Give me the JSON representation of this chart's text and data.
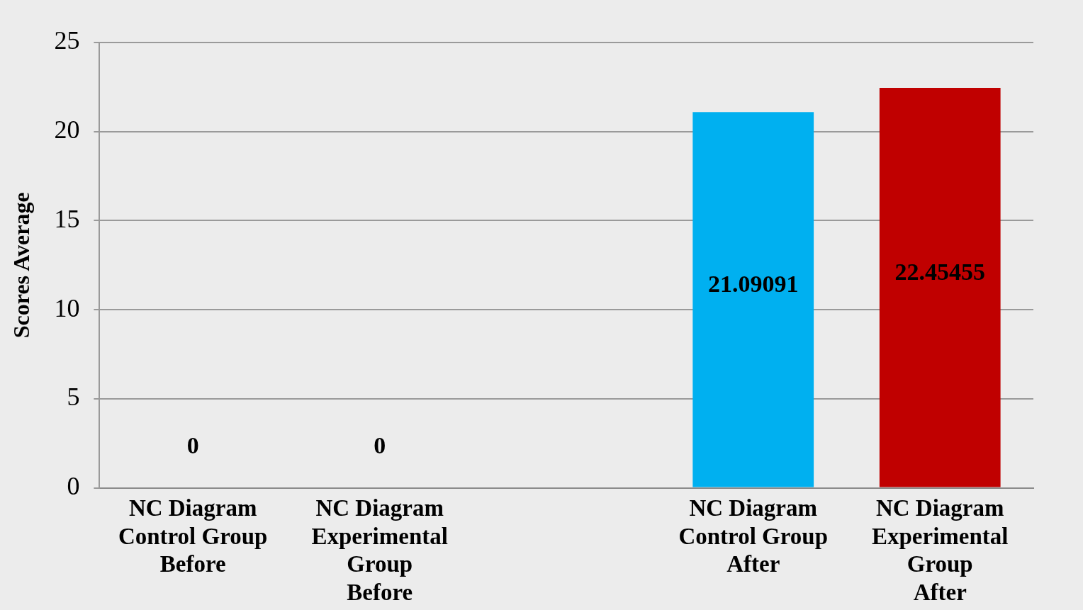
{
  "chart_data": {
    "type": "bar",
    "ylabel": "Scores Average",
    "categories": [
      "NC Diagram\nControl Group\nBefore",
      "NC Diagram\nExperimental\nGroup\nBefore",
      null,
      "NC Diagram\nControl Group\nAfter",
      "NC Diagram\nExperimental\nGroup\nAfter"
    ],
    "values": [
      0,
      0,
      null,
      21.09091,
      22.45455
    ],
    "colors": [
      "#00b0f0",
      "#c00000",
      "#00b0f0",
      "#00b0f0",
      "#c00000"
    ],
    "data_labels": true,
    "ylim": [
      0,
      25
    ],
    "yticks": [
      0,
      5,
      10,
      15,
      20,
      25
    ],
    "grid": "y",
    "legend": false
  }
}
